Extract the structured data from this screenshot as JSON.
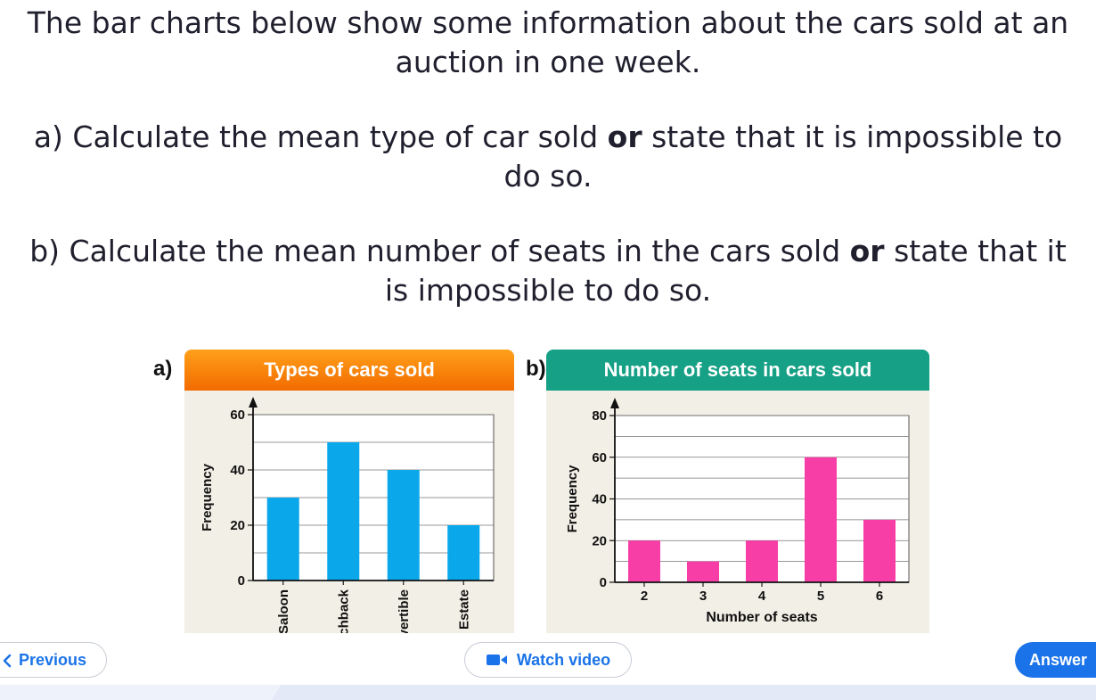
{
  "question": {
    "intro_line1": "The bar charts below show some information about the cars sold at an",
    "intro_line2": "auction in one week.",
    "a_line1_pre": "a) Calculate the mean type of car sold ",
    "a_line1_bold": "or",
    "a_line1_post": " state that it is impossible to",
    "a_line2": "do so.",
    "b_line1_pre": "b) Calculate the mean number of seats in the cars sold ",
    "b_line1_bold": "or",
    "b_line1_post": " state that it",
    "b_line2": "is impossible to do so."
  },
  "panels": {
    "a_label": "a)",
    "b_label": "b)"
  },
  "chart_data": [
    {
      "type": "bar",
      "title": "Types of cars sold",
      "ylabel": "Frequency",
      "xlabel": "",
      "categories": [
        "Saloon",
        "tchback",
        "vertible",
        "Estate"
      ],
      "values": [
        30,
        50,
        40,
        20
      ],
      "ylim": [
        0,
        60
      ],
      "yticks": [
        0,
        20,
        40,
        60
      ],
      "grid": true,
      "bar_color": "#0aa8ea",
      "header_color": "#f7820a"
    },
    {
      "type": "bar",
      "title": "Number of seats in cars sold",
      "ylabel": "Frequency",
      "xlabel": "Number of seats",
      "categories": [
        "2",
        "3",
        "4",
        "5",
        "6"
      ],
      "values": [
        20,
        10,
        20,
        60,
        30
      ],
      "ylim": [
        0,
        80
      ],
      "yticks": [
        0,
        20,
        40,
        60,
        80
      ],
      "grid": true,
      "bar_color": "#f73ea6",
      "header_color": "#16a085"
    }
  ],
  "nav": {
    "previous_label": "Previous",
    "video_label": "Watch video",
    "answer_label": "Answer"
  },
  "icons": {
    "previous": "chevron-left-icon",
    "video": "video-camera-icon"
  }
}
